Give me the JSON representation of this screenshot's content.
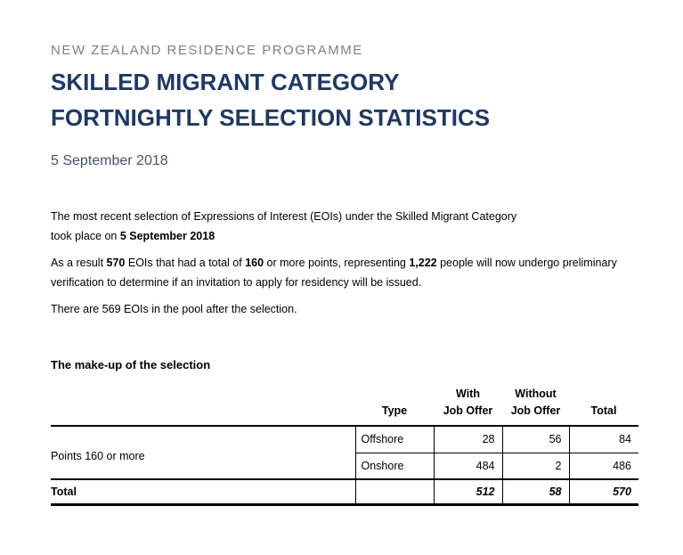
{
  "document": {
    "kicker": "NEW ZEALAND RESIDENCE PROGRAMME",
    "title_line1": "SKILLED MIGRANT CATEGORY",
    "title_line2": "FORTNIGHTLY SELECTION STATISTICS",
    "date": "5 September 2018"
  },
  "intro": {
    "p1_line1": "The most recent selection of Expressions of Interest (EOIs) under the Skilled Migrant Category",
    "p1_line2_text": "took place on ",
    "p1_line2_bold": "5 September 2018",
    "p2_seg1": "As a result ",
    "p2_bold1": "570",
    "p2_seg2": " EOIs that had a total of ",
    "p2_bold2": "160",
    "p2_seg3": " or more points, representing ",
    "p2_bold3": "1,222",
    "p2_seg4": " people will now undergo preliminary",
    "p2_line2": "verification to determine if an invitation to apply for residency will be issued.",
    "p3": "There are 569 EOIs in the pool after the selection."
  },
  "selection_table": {
    "heading": "The make-up of the selection",
    "col_headers": {
      "type": "Type",
      "with_top": "With",
      "with_bottom": "Job Offer",
      "without_top": "Without",
      "without_bottom": "Job Offer",
      "total": "Total"
    },
    "rows": [
      {
        "label": "Points 160 or more",
        "type": "Offshore",
        "with_job_offer": "28",
        "without_job_offer": "56",
        "total": "84"
      },
      {
        "type": "Onshore",
        "with_job_offer": "484",
        "without_job_offer": "2",
        "total": "486"
      }
    ],
    "total_row": {
      "label": "Total",
      "with_job_offer": "512",
      "without_job_offer": "58",
      "total": "570"
    }
  },
  "colors": {
    "title": "#1f3864",
    "kicker": "#7f7f7f",
    "date": "#44546a",
    "body_text": "#000000",
    "background": "#ffffff"
  }
}
